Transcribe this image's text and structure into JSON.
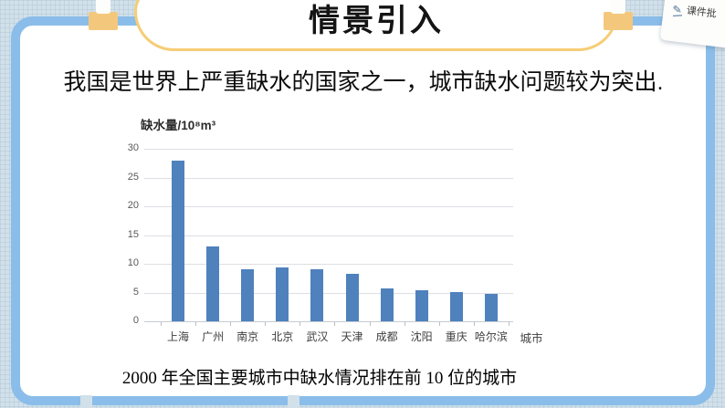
{
  "title_banner": {
    "text": "情景引入"
  },
  "intro_text": "我国是世界上严重缺水的国家之一，城市缺水问题较为突出.",
  "caption": "2000 年全国主要城市中缺水情况排在前 10 位的城市",
  "overlay_tool": {
    "label": "课件批",
    "icon": "pen-icon",
    "icon_glyph": "✎"
  },
  "colors": {
    "bar": "#4f81bd",
    "card_border": "#8abde9",
    "bubble_border": "#f6cd76",
    "clip": "#f4c87c",
    "background": "#d2e0ea",
    "gridline": "#dcdfe3"
  },
  "chart_data": {
    "type": "bar",
    "title": "缺水量/10⁸m³",
    "ylabel": "缺水量/10⁸m³",
    "xlabel": "城市",
    "categories": [
      "上海",
      "广州",
      "南京",
      "北京",
      "武汉",
      "天津",
      "成都",
      "沈阳",
      "重庆",
      "哈尔滨"
    ],
    "values": [
      28,
      13,
      9,
      9.3,
      9,
      8.3,
      5.7,
      5.4,
      5.1,
      4.8
    ],
    "ylim": [
      0,
      30
    ],
    "yticks": [
      0,
      5,
      10,
      15,
      20,
      25,
      30
    ],
    "grid": true,
    "legend": false,
    "bar_color": "#4f81bd"
  }
}
